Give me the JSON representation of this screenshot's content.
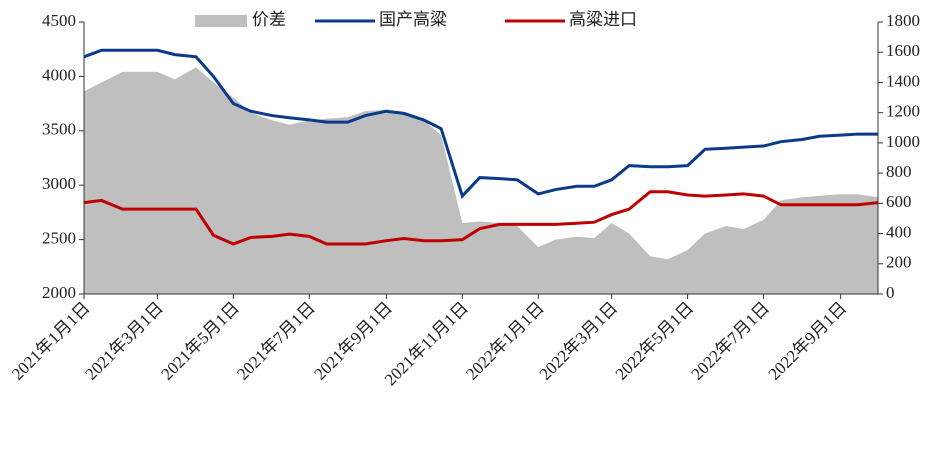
{
  "chart_data": {
    "type": "line",
    "x": [
      "2021-01-01",
      "2021-01-15",
      "2021-02-01",
      "2021-02-15",
      "2021-03-01",
      "2021-03-15",
      "2021-04-01",
      "2021-04-15",
      "2021-05-01",
      "2021-05-15",
      "2021-06-01",
      "2021-06-15",
      "2021-07-01",
      "2021-07-15",
      "2021-08-01",
      "2021-08-15",
      "2021-09-01",
      "2021-09-15",
      "2021-10-01",
      "2021-10-15",
      "2021-11-01",
      "2021-11-15",
      "2021-12-01",
      "2021-12-15",
      "2022-01-01",
      "2022-01-15",
      "2022-02-01",
      "2022-02-15",
      "2022-03-01",
      "2022-03-15",
      "2022-04-01",
      "2022-04-15",
      "2022-05-01",
      "2022-05-15",
      "2022-06-01",
      "2022-06-15",
      "2022-07-01",
      "2022-07-15",
      "2022-08-01",
      "2022-08-15",
      "2022-09-01",
      "2022-09-15",
      "2022-10-01"
    ],
    "series": [
      {
        "name": "价差",
        "color": "#bfbfbf",
        "axis": "y2",
        "kind": "area",
        "values": [
          1340,
          1400,
          1470,
          1470,
          1470,
          1420,
          1500,
          1400,
          1300,
          1200,
          1150,
          1120,
          1150,
          1160,
          1170,
          1210,
          1220,
          1190,
          1150,
          1050,
          470,
          480,
          470,
          450,
          310,
          360,
          380,
          370,
          470,
          400,
          250,
          230,
          290,
          400,
          450,
          430,
          490,
          620,
          640,
          650,
          660,
          660,
          640
        ]
      },
      {
        "name": "国产高粱",
        "color": "#0b3a8a",
        "values": [
          4180,
          4240,
          4240,
          4240,
          4240,
          4200,
          4180,
          4000,
          3750,
          3680,
          3640,
          3620,
          3600,
          3580,
          3580,
          3640,
          3680,
          3660,
          3600,
          3520,
          2900,
          3070,
          3060,
          3050,
          2920,
          2960,
          2990,
          2990,
          3050,
          3180,
          3170,
          3170,
          3180,
          3330,
          3340,
          3350,
          3360,
          3400,
          3420,
          3450,
          3460,
          3470,
          3470
        ]
      },
      {
        "name": "高粱进口",
        "color": "#c00000",
        "values": [
          2840,
          2860,
          2780,
          2780,
          2780,
          2780,
          2780,
          2540,
          2460,
          2520,
          2530,
          2550,
          2530,
          2460,
          2460,
          2460,
          2490,
          2510,
          2490,
          2490,
          2500,
          2600,
          2640,
          2640,
          2640,
          2640,
          2650,
          2660,
          2730,
          2780,
          2940,
          2940,
          2910,
          2900,
          2910,
          2920,
          2900,
          2820,
          2820,
          2820,
          2820,
          2820,
          2840
        ]
      }
    ],
    "xlim": [
      "2021-01-01",
      "2022-10-01"
    ],
    "xticks": [
      {
        "value": "2021-01-01",
        "label": "2021年1月1日"
      },
      {
        "value": "2021-03-01",
        "label": "2021年3月1日"
      },
      {
        "value": "2021-05-01",
        "label": "2021年5月1日"
      },
      {
        "value": "2021-07-01",
        "label": "2021年7月1日"
      },
      {
        "value": "2021-09-01",
        "label": "2021年9月1日"
      },
      {
        "value": "2021-11-01",
        "label": "2021年11月1日"
      },
      {
        "value": "2022-01-01",
        "label": "2022年1月1日"
      },
      {
        "value": "2022-03-01",
        "label": "2022年3月1日"
      },
      {
        "value": "2022-05-01",
        "label": "2022年5月1日"
      },
      {
        "value": "2022-07-01",
        "label": "2022年7月1日"
      },
      {
        "value": "2022-09-01",
        "label": "2022年9月1日"
      }
    ],
    "ylim": [
      2000,
      4500
    ],
    "yticks": [
      2000,
      2500,
      3000,
      3500,
      4000,
      4500
    ],
    "y2lim": [
      0,
      1800
    ],
    "y2ticks": [
      0,
      200,
      400,
      600,
      800,
      1000,
      1200,
      1400,
      1600,
      1800
    ],
    "legend": "top"
  }
}
